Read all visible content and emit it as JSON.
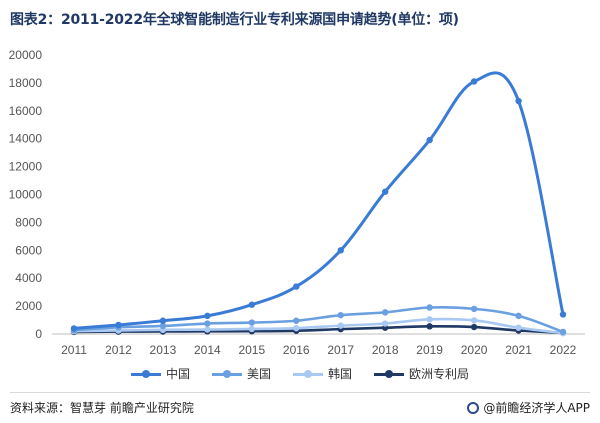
{
  "title": "图表2：2011-2022年全球智能制造行业专利来源国申请趋势(单位：项)",
  "source": "资料来源：智慧芽 前瞻产业研究院",
  "brand": "@前瞻经济学人APP",
  "chart_data": {
    "type": "line",
    "categories": [
      "2011",
      "2012",
      "2013",
      "2014",
      "2015",
      "2016",
      "2017",
      "2018",
      "2019",
      "2020",
      "2021",
      "2022"
    ],
    "ylim": [
      0,
      20000
    ],
    "yticks": [
      "0",
      "2000",
      "4000",
      "6000",
      "8000",
      "10000",
      "12000",
      "14000",
      "16000",
      "18000",
      "20000"
    ],
    "grid": false,
    "legend_position": "bottom",
    "series": [
      {
        "name": "中国",
        "color": "#3a7bd5",
        "values": [
          400,
          650,
          950,
          1300,
          2100,
          3400,
          6000,
          10200,
          13900,
          18100,
          16700,
          1400
        ]
      },
      {
        "name": "美国",
        "color": "#6a9fe0",
        "values": [
          280,
          480,
          580,
          750,
          820,
          950,
          1350,
          1550,
          1900,
          1800,
          1300,
          150
        ]
      },
      {
        "name": "韩国",
        "color": "#a9c9f2",
        "values": [
          200,
          250,
          300,
          320,
          360,
          420,
          600,
          750,
          1050,
          980,
          450,
          60
        ]
      },
      {
        "name": "欧洲专利局",
        "color": "#1f3864",
        "values": [
          150,
          170,
          180,
          190,
          200,
          230,
          350,
          450,
          550,
          500,
          250,
          80
        ]
      }
    ]
  }
}
